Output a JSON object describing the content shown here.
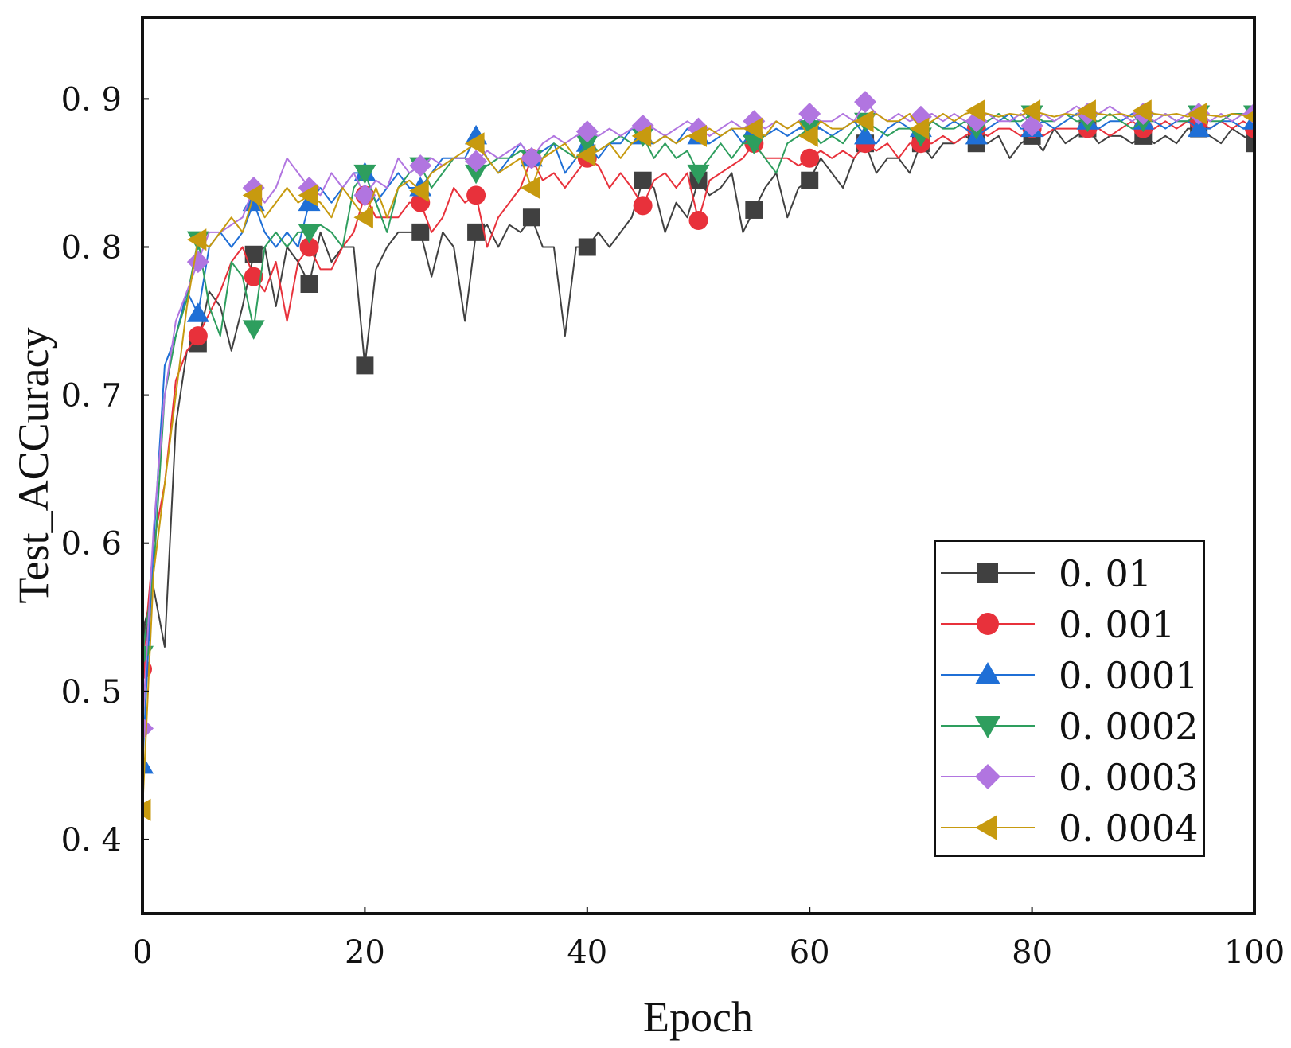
{
  "chart_data": {
    "type": "line",
    "title": "",
    "xlabel": "Epoch",
    "ylabel": "Test_ACCuracy",
    "xlim": [
      0,
      100
    ],
    "ylim": [
      0.35,
      0.955
    ],
    "xticks": [
      0,
      20,
      40,
      60,
      80,
      100
    ],
    "yticks": [
      0.4,
      0.5,
      0.6,
      0.7,
      0.8,
      0.9
    ],
    "xtick_labels": [
      "0",
      "20",
      "40",
      "60",
      "80",
      "100"
    ],
    "ytick_labels": [
      "0. 4",
      "0. 5",
      "0. 6",
      "0. 7",
      "0. 8",
      "0. 9"
    ],
    "marker_every": 5,
    "legend_position": "bottom-right",
    "series": [
      {
        "name": "0. 01",
        "color": "#404040",
        "marker": "square",
        "values": [
          0.54,
          0.57,
          0.53,
          0.68,
          0.73,
          0.735,
          0.77,
          0.76,
          0.73,
          0.76,
          0.795,
          0.8,
          0.76,
          0.8,
          0.79,
          0.775,
          0.81,
          0.79,
          0.8,
          0.8,
          0.72,
          0.785,
          0.8,
          0.81,
          0.81,
          0.81,
          0.78,
          0.81,
          0.8,
          0.75,
          0.81,
          0.815,
          0.8,
          0.815,
          0.81,
          0.82,
          0.8,
          0.8,
          0.74,
          0.8,
          0.8,
          0.81,
          0.8,
          0.81,
          0.82,
          0.845,
          0.84,
          0.81,
          0.83,
          0.82,
          0.845,
          0.835,
          0.84,
          0.85,
          0.81,
          0.825,
          0.84,
          0.85,
          0.82,
          0.84,
          0.845,
          0.86,
          0.85,
          0.84,
          0.86,
          0.87,
          0.85,
          0.86,
          0.86,
          0.85,
          0.87,
          0.86,
          0.87,
          0.87,
          0.875,
          0.87,
          0.87,
          0.875,
          0.86,
          0.87,
          0.875,
          0.865,
          0.88,
          0.87,
          0.875,
          0.88,
          0.87,
          0.875,
          0.875,
          0.87,
          0.875,
          0.87,
          0.875,
          0.87,
          0.88,
          0.88,
          0.875,
          0.87,
          0.88,
          0.875,
          0.87
        ]
      },
      {
        "name": "0. 001",
        "color": "#e8313b",
        "marker": "circle",
        "values": [
          0.515,
          0.6,
          0.64,
          0.71,
          0.73,
          0.74,
          0.755,
          0.77,
          0.79,
          0.8,
          0.78,
          0.77,
          0.79,
          0.75,
          0.79,
          0.8,
          0.785,
          0.785,
          0.8,
          0.81,
          0.835,
          0.82,
          0.82,
          0.82,
          0.83,
          0.83,
          0.81,
          0.82,
          0.84,
          0.83,
          0.835,
          0.8,
          0.82,
          0.83,
          0.84,
          0.86,
          0.845,
          0.85,
          0.84,
          0.85,
          0.86,
          0.855,
          0.84,
          0.85,
          0.84,
          0.828,
          0.845,
          0.85,
          0.84,
          0.85,
          0.818,
          0.845,
          0.85,
          0.855,
          0.86,
          0.87,
          0.86,
          0.86,
          0.86,
          0.855,
          0.86,
          0.865,
          0.86,
          0.865,
          0.86,
          0.87,
          0.865,
          0.87,
          0.86,
          0.87,
          0.87,
          0.87,
          0.875,
          0.87,
          0.875,
          0.88,
          0.875,
          0.88,
          0.88,
          0.875,
          0.88,
          0.875,
          0.88,
          0.88,
          0.88,
          0.88,
          0.88,
          0.875,
          0.88,
          0.885,
          0.88,
          0.88,
          0.885,
          0.88,
          0.885,
          0.885,
          0.88,
          0.885,
          0.88,
          0.885,
          0.88
        ]
      },
      {
        "name": "0. 0001",
        "color": "#1f6fd6",
        "marker": "triangle-up",
        "values": [
          0.45,
          0.6,
          0.72,
          0.74,
          0.77,
          0.755,
          0.8,
          0.81,
          0.8,
          0.81,
          0.83,
          0.81,
          0.8,
          0.81,
          0.8,
          0.83,
          0.84,
          0.83,
          0.84,
          0.85,
          0.85,
          0.83,
          0.84,
          0.85,
          0.84,
          0.84,
          0.85,
          0.86,
          0.86,
          0.86,
          0.875,
          0.86,
          0.85,
          0.86,
          0.87,
          0.86,
          0.865,
          0.87,
          0.85,
          0.86,
          0.87,
          0.86,
          0.87,
          0.87,
          0.88,
          0.875,
          0.87,
          0.875,
          0.87,
          0.88,
          0.875,
          0.87,
          0.875,
          0.88,
          0.87,
          0.88,
          0.875,
          0.88,
          0.875,
          0.88,
          0.885,
          0.88,
          0.875,
          0.88,
          0.885,
          0.875,
          0.87,
          0.88,
          0.885,
          0.88,
          0.88,
          0.885,
          0.88,
          0.885,
          0.88,
          0.875,
          0.88,
          0.885,
          0.89,
          0.88,
          0.88,
          0.885,
          0.88,
          0.885,
          0.89,
          0.885,
          0.88,
          0.885,
          0.885,
          0.89,
          0.885,
          0.885,
          0.88,
          0.885,
          0.885,
          0.88,
          0.88,
          0.885,
          0.885,
          0.88,
          0.885
        ]
      },
      {
        "name": "0. 0002",
        "color": "#2e9e5e",
        "marker": "triangle-down",
        "values": [
          0.525,
          0.58,
          0.7,
          0.74,
          0.765,
          0.805,
          0.76,
          0.74,
          0.79,
          0.78,
          0.745,
          0.8,
          0.81,
          0.8,
          0.81,
          0.81,
          0.815,
          0.81,
          0.8,
          0.84,
          0.85,
          0.83,
          0.81,
          0.84,
          0.85,
          0.855,
          0.84,
          0.85,
          0.86,
          0.86,
          0.85,
          0.855,
          0.86,
          0.86,
          0.865,
          0.86,
          0.86,
          0.87,
          0.865,
          0.86,
          0.87,
          0.865,
          0.87,
          0.875,
          0.87,
          0.875,
          0.86,
          0.87,
          0.86,
          0.865,
          0.85,
          0.86,
          0.87,
          0.86,
          0.87,
          0.87,
          0.86,
          0.85,
          0.87,
          0.875,
          0.88,
          0.87,
          0.875,
          0.87,
          0.88,
          0.885,
          0.88,
          0.875,
          0.88,
          0.88,
          0.875,
          0.885,
          0.88,
          0.88,
          0.885,
          0.88,
          0.885,
          0.89,
          0.885,
          0.885,
          0.89,
          0.885,
          0.885,
          0.89,
          0.885,
          0.885,
          0.885,
          0.89,
          0.885,
          0.88,
          0.885,
          0.885,
          0.89,
          0.885,
          0.885,
          0.89,
          0.885,
          0.885,
          0.89,
          0.89,
          0.89
        ]
      },
      {
        "name": "0. 0003",
        "color": "#b175e0",
        "marker": "diamond",
        "values": [
          0.475,
          0.61,
          0.7,
          0.75,
          0.77,
          0.79,
          0.81,
          0.81,
          0.815,
          0.82,
          0.84,
          0.83,
          0.84,
          0.86,
          0.85,
          0.84,
          0.835,
          0.85,
          0.84,
          0.85,
          0.835,
          0.845,
          0.84,
          0.86,
          0.85,
          0.855,
          0.86,
          0.855,
          0.86,
          0.86,
          0.858,
          0.865,
          0.86,
          0.865,
          0.87,
          0.86,
          0.87,
          0.875,
          0.87,
          0.875,
          0.878,
          0.875,
          0.88,
          0.875,
          0.88,
          0.882,
          0.88,
          0.875,
          0.88,
          0.885,
          0.88,
          0.875,
          0.88,
          0.885,
          0.88,
          0.885,
          0.88,
          0.885,
          0.88,
          0.885,
          0.89,
          0.885,
          0.885,
          0.89,
          0.885,
          0.898,
          0.89,
          0.885,
          0.89,
          0.885,
          0.888,
          0.89,
          0.885,
          0.89,
          0.885,
          0.885,
          0.89,
          0.885,
          0.885,
          0.89,
          0.882,
          0.89,
          0.885,
          0.89,
          0.895,
          0.89,
          0.89,
          0.895,
          0.89,
          0.885,
          0.89,
          0.885,
          0.89,
          0.885,
          0.89,
          0.89,
          0.885,
          0.89,
          0.885,
          0.89,
          0.89
        ]
      },
      {
        "name": "0. 0004",
        "color": "#c79a0f",
        "marker": "triangle-left",
        "values": [
          0.42,
          0.58,
          0.64,
          0.7,
          0.76,
          0.805,
          0.8,
          0.81,
          0.82,
          0.81,
          0.835,
          0.82,
          0.83,
          0.84,
          0.83,
          0.835,
          0.83,
          0.82,
          0.84,
          0.83,
          0.82,
          0.84,
          0.82,
          0.84,
          0.845,
          0.838,
          0.85,
          0.855,
          0.86,
          0.865,
          0.87,
          0.86,
          0.85,
          0.855,
          0.86,
          0.84,
          0.86,
          0.865,
          0.87,
          0.86,
          0.862,
          0.865,
          0.87,
          0.86,
          0.87,
          0.875,
          0.87,
          0.875,
          0.87,
          0.875,
          0.875,
          0.88,
          0.875,
          0.88,
          0.88,
          0.88,
          0.875,
          0.885,
          0.88,
          0.885,
          0.875,
          0.885,
          0.88,
          0.88,
          0.885,
          0.885,
          0.89,
          0.885,
          0.885,
          0.89,
          0.88,
          0.885,
          0.89,
          0.885,
          0.89,
          0.892,
          0.89,
          0.888,
          0.89,
          0.889,
          0.892,
          0.89,
          0.888,
          0.89,
          0.889,
          0.892,
          0.89,
          0.889,
          0.89,
          0.888,
          0.892,
          0.89,
          0.889,
          0.89,
          0.888,
          0.89,
          0.889,
          0.888,
          0.89,
          0.889,
          0.888
        ]
      }
    ]
  }
}
